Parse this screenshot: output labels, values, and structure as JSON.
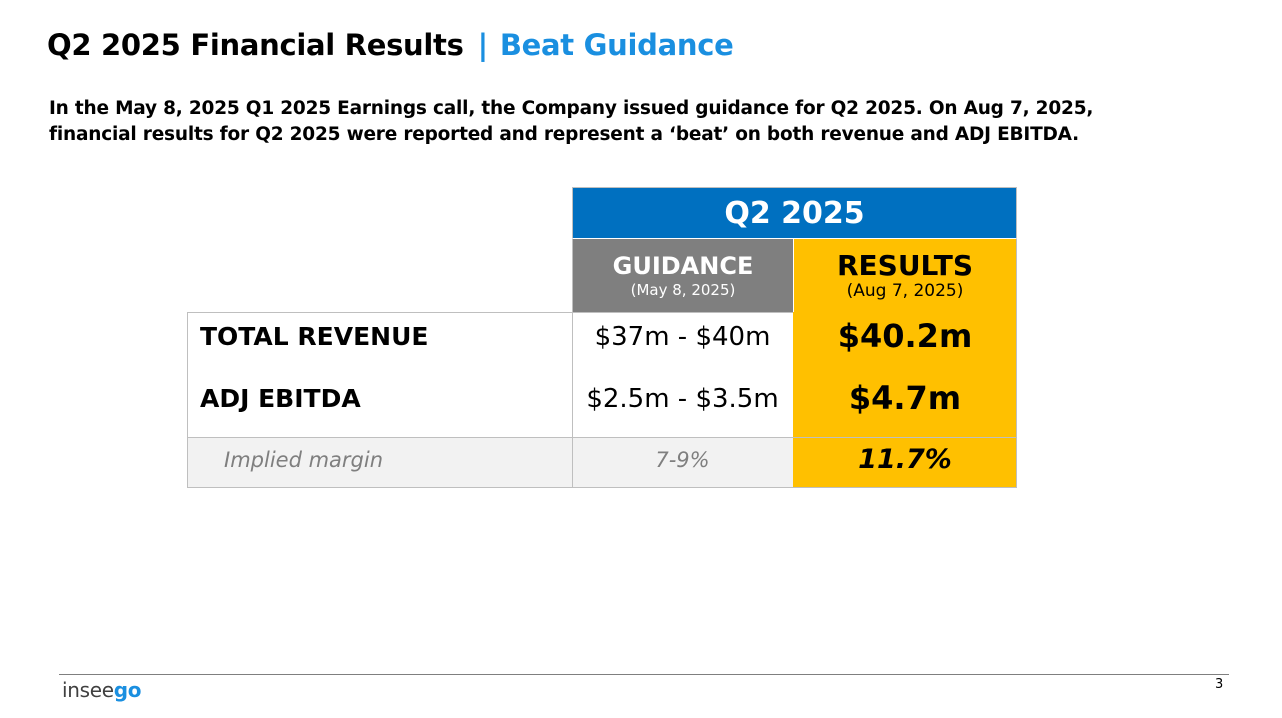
{
  "header": {
    "title": "Q2 2025 Financial Results",
    "separator": "|",
    "accent": "Beat Guidance"
  },
  "subtitle": "In the May 8, 2025 Q1 2025 Earnings call, the Company issued guidance for Q2 2025. On Aug 7, 2025, financial results for Q2 2025 were reported and represent a ‘beat’ on both revenue and ADJ EBITDA.",
  "table": {
    "period": "Q2 2025",
    "guidance_header": "GUIDANCE",
    "guidance_date": "(May 8, 2025)",
    "results_header": "RESULTS",
    "results_date": "(Aug 7, 2025)",
    "rows": [
      {
        "label": "TOTAL REVENUE",
        "guidance": "$37m - $40m",
        "result": "$40.2m"
      },
      {
        "label": "ADJ EBITDA",
        "guidance": "$2.5m - $3.5m",
        "result": "$4.7m"
      }
    ],
    "margin_row": {
      "label": "Implied margin",
      "guidance": "7-9%",
      "result": "11.7%"
    }
  },
  "footer": {
    "logo_prefix": "insee",
    "logo_accent": "go",
    "page_number": "3"
  },
  "colors": {
    "accent_blue": "#1a8fe0",
    "header_blue": "#0070c0",
    "guidance_gray": "#7f7f7f",
    "results_yellow": "#ffc000"
  }
}
